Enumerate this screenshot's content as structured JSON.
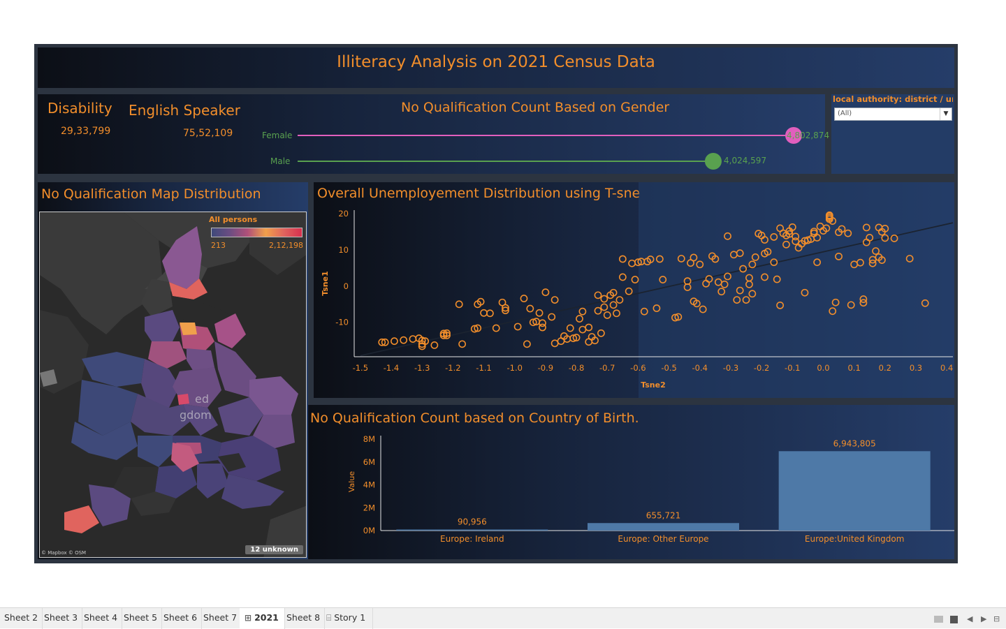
{
  "dashboard": {
    "title": "Illiteracy Analysis on 2021 Census Data"
  },
  "kpis": {
    "disability_label": "Disability",
    "disability_value": "29,33,799",
    "english_label": "English Speaker",
    "english_value": "75,52,109"
  },
  "gender_chart": {
    "title": "No Qualification Count Based on Gender",
    "rows": [
      {
        "label": "Female",
        "value": 4802874,
        "value_text": "4,802,874",
        "color": "#e15fbd"
      },
      {
        "label": "Male",
        "value": 4024597,
        "value_text": "4,024,597",
        "color": "#59a14f"
      }
    ]
  },
  "filter": {
    "title": "local authority: district / unit..",
    "selected": "(All)"
  },
  "map": {
    "title": "No Qualification Map Distribution",
    "legend_title": "All persons",
    "legend_min": "213",
    "legend_max": "2,12,198",
    "attribution": "© Mapbox © OSM",
    "unknown_badge": "12 unknown",
    "country_label_line1": "ed",
    "country_label_line2": "gdom",
    "colors": [
      "#3f4a7a",
      "#6b4d82",
      "#b05079",
      "#e0645e",
      "#f0a04b"
    ]
  },
  "chart_data": [
    {
      "type": "scatter",
      "title": "Overall Unemployement Distribution using T-sne",
      "xlabel": "Tsne2",
      "ylabel": "Tsne1",
      "xlim": [
        -1.52,
        0.42
      ],
      "ylim": [
        -19.5,
        21
      ],
      "x_ticks": [
        -1.5,
        -1.4,
        -1.3,
        -1.2,
        -1.1,
        -1.0,
        -0.9,
        -0.8,
        -0.7,
        -0.6,
        -0.5,
        -0.4,
        -0.3,
        -0.2,
        -0.1,
        0.0,
        0.1,
        0.2,
        0.3,
        0.4
      ],
      "x_tick_labels": [
        "-1.5",
        "-1.4",
        "-1.3",
        "-1.2",
        "-1.1",
        "-1.0",
        "-0.9",
        "-0.8",
        "-0.7",
        "-0.6",
        "-0.5",
        "-0.4",
        "-0.3",
        "-0.2",
        "-0.1",
        "0.0",
        "0.1",
        "0.2",
        "0.3",
        "0.4"
      ],
      "y_ticks": [
        20,
        10,
        0,
        -10
      ],
      "y_tick_labels": [
        "20",
        "10",
        "0",
        "-10"
      ],
      "trend_line": {
        "x": [
          -1.5,
          0.42
        ],
        "y": [
          -19.2,
          17.5
        ]
      },
      "marker_color": "#f28e2b",
      "points": [
        [
          -1.43,
          -15.5
        ],
        [
          -1.42,
          -15.5
        ],
        [
          -1.39,
          -15.2
        ],
        [
          -1.36,
          -14.9
        ],
        [
          -1.33,
          -14.6
        ],
        [
          -1.31,
          -14.4
        ],
        [
          -1.3,
          -15
        ],
        [
          -1.3,
          -16
        ],
        [
          -1.3,
          -16.6
        ],
        [
          -1.29,
          -15.2
        ],
        [
          -1.26,
          -16.3
        ],
        [
          -1.23,
          -13.1
        ],
        [
          -1.22,
          -13
        ],
        [
          -1.23,
          -13.6
        ],
        [
          -1.22,
          -13.6
        ],
        [
          -1.18,
          -5
        ],
        [
          -1.17,
          -16
        ],
        [
          -1.13,
          -11.8
        ],
        [
          -1.12,
          -11.6
        ],
        [
          -1.12,
          -5
        ],
        [
          -1.11,
          -4.3
        ],
        [
          -1.1,
          -7.4
        ],
        [
          -1.08,
          -7.5
        ],
        [
          -1.06,
          -11.6
        ],
        [
          -1.04,
          -4.5
        ],
        [
          -1.03,
          -6
        ],
        [
          -1.03,
          -6.7
        ],
        [
          -0.99,
          -11.2
        ],
        [
          -0.97,
          -3.4
        ],
        [
          -0.96,
          -16
        ],
        [
          -0.95,
          -6.2
        ],
        [
          -0.94,
          -10
        ],
        [
          -0.93,
          -9.8
        ],
        [
          -0.92,
          -7.4
        ],
        [
          -0.91,
          -10.2
        ],
        [
          -0.91,
          -11.4
        ],
        [
          -0.9,
          -1.7
        ],
        [
          -0.88,
          -8.5
        ],
        [
          -0.87,
          -3.8
        ],
        [
          -0.87,
          -15.8
        ],
        [
          -0.85,
          -15.2
        ],
        [
          -0.84,
          -13.8
        ],
        [
          -0.83,
          -14.6
        ],
        [
          -0.82,
          -11.6
        ],
        [
          -0.81,
          -14.4
        ],
        [
          -0.8,
          -14.2
        ],
        [
          -0.79,
          -9
        ],
        [
          -0.78,
          -12
        ],
        [
          -0.78,
          -7
        ],
        [
          -0.76,
          -11.4
        ],
        [
          -0.76,
          -15.4
        ],
        [
          -0.75,
          -14
        ],
        [
          -0.74,
          -15
        ],
        [
          -0.73,
          -6.8
        ],
        [
          -0.73,
          -2.5
        ],
        [
          -0.72,
          -13
        ],
        [
          -0.71,
          -3.5
        ],
        [
          -0.71,
          -5.8
        ],
        [
          -0.7,
          -8
        ],
        [
          -0.69,
          -2.5
        ],
        [
          -0.68,
          -1.8
        ],
        [
          -0.68,
          -5.2
        ],
        [
          -0.67,
          -7.5
        ],
        [
          -0.66,
          -3.8
        ],
        [
          -0.65,
          7.5
        ],
        [
          -0.65,
          2.5
        ],
        [
          -0.63,
          -1.4
        ],
        [
          -0.62,
          6.3
        ],
        [
          -0.61,
          1.8
        ],
        [
          -0.6,
          6.6
        ],
        [
          -0.59,
          6.8
        ],
        [
          -0.58,
          -7
        ],
        [
          -0.57,
          6.8
        ],
        [
          -0.56,
          7.4
        ],
        [
          -0.54,
          -6.1
        ],
        [
          -0.53,
          7.5
        ],
        [
          -0.52,
          1.8
        ],
        [
          -0.48,
          -8.7
        ],
        [
          -0.47,
          -8.5
        ],
        [
          -0.46,
          7.6
        ],
        [
          -0.44,
          -0.3
        ],
        [
          -0.44,
          1.4
        ],
        [
          -0.43,
          6.4
        ],
        [
          -0.42,
          7.9
        ],
        [
          -0.42,
          -4.2
        ],
        [
          -0.41,
          -4.8
        ],
        [
          -0.4,
          6
        ],
        [
          -0.39,
          -6.4
        ],
        [
          -0.38,
          0.7
        ],
        [
          -0.37,
          2
        ],
        [
          -0.36,
          8.3
        ],
        [
          -0.35,
          7.5
        ],
        [
          -0.34,
          1.1
        ],
        [
          -0.33,
          -1.5
        ],
        [
          -0.32,
          0.5
        ],
        [
          -0.31,
          2.7
        ],
        [
          -0.28,
          -3.8
        ],
        [
          -0.27,
          -1.2
        ],
        [
          -0.26,
          4.8
        ],
        [
          -0.25,
          -3.8
        ],
        [
          -0.24,
          2.3
        ],
        [
          -0.24,
          0.5
        ],
        [
          -0.23,
          6
        ],
        [
          -0.22,
          8
        ],
        [
          -0.21,
          14.5
        ],
        [
          -0.2,
          14
        ],
        [
          -0.19,
          12.8
        ],
        [
          -0.19,
          9
        ],
        [
          -0.18,
          9.5
        ],
        [
          -0.16,
          13.6
        ],
        [
          -0.16,
          6.6
        ],
        [
          -0.14,
          16
        ],
        [
          -0.13,
          14.6
        ],
        [
          -0.12,
          14
        ],
        [
          -0.11,
          14.4
        ],
        [
          -0.11,
          15.2
        ],
        [
          -0.1,
          16.3
        ],
        [
          -0.09,
          13.7
        ],
        [
          -0.09,
          12.4
        ],
        [
          -0.07,
          11.7
        ],
        [
          -0.06,
          12.5
        ],
        [
          -0.05,
          12.7
        ],
        [
          -0.04,
          13
        ],
        [
          -0.03,
          14.6
        ],
        [
          -0.03,
          15.1
        ],
        [
          -0.02,
          13.4
        ],
        [
          -0.01,
          16.5
        ],
        [
          0,
          15.3
        ],
        [
          0.01,
          16
        ],
        [
          0.02,
          18.5
        ],
        [
          0.02,
          18.9
        ],
        [
          0.02,
          19.3
        ],
        [
          0.02,
          19.6
        ],
        [
          0.03,
          18
        ],
        [
          0.03,
          -6.9
        ],
        [
          0.04,
          -4.5
        ],
        [
          0.05,
          8.2
        ],
        [
          0.06,
          15.8
        ],
        [
          0.08,
          14.6
        ],
        [
          0.09,
          -5.2
        ],
        [
          0.1,
          6
        ],
        [
          0.12,
          6.5
        ],
        [
          0.13,
          -4.6
        ],
        [
          0.13,
          -3.6
        ],
        [
          0.14,
          12.1
        ],
        [
          0.14,
          16.2
        ],
        [
          0.15,
          13.4
        ],
        [
          0.16,
          7.3
        ],
        [
          0.16,
          6.3
        ],
        [
          0.17,
          9.7
        ],
        [
          0.18,
          16.2
        ],
        [
          0.18,
          8
        ],
        [
          0.19,
          15
        ],
        [
          0.19,
          7.2
        ],
        [
          0.2,
          13.3
        ],
        [
          0.2,
          15.9
        ],
        [
          0.23,
          13.2
        ],
        [
          0.28,
          7.6
        ],
        [
          0.33,
          -4.7
        ],
        [
          -0.06,
          -1.8
        ],
        [
          -0.14,
          -5.3
        ],
        [
          -0.29,
          8.7
        ],
        [
          -0.23,
          -2.1
        ],
        [
          -0.27,
          9.1
        ],
        [
          -0.31,
          13.8
        ],
        [
          -0.15,
          1.9
        ],
        [
          -0.12,
          11.5
        ],
        [
          -0.08,
          10.6
        ],
        [
          -0.02,
          6.6
        ],
        [
          0.05,
          14.9
        ],
        [
          -0.19,
          2.5
        ]
      ]
    },
    {
      "type": "bar",
      "title": "No Qualification Count based on Country of Birth.",
      "ylabel": "Value",
      "categories": [
        "Europe: Ireland",
        "Europe: Other Europe",
        "Europe:United Kingdom"
      ],
      "values": [
        90956,
        655721,
        6943805
      ],
      "value_labels": [
        "90,956",
        "655,721",
        "6,943,805"
      ],
      "ylim": [
        0,
        8000000
      ],
      "y_ticks": [
        0,
        2000000,
        4000000,
        6000000,
        8000000
      ],
      "y_tick_labels": [
        "0M",
        "2M",
        "4M",
        "6M",
        "8M"
      ],
      "bar_color": "#4e79a7"
    }
  ],
  "tabs": [
    {
      "label": "Sheet 2",
      "active": false,
      "icon": ""
    },
    {
      "label": "Sheet 3",
      "active": false,
      "icon": ""
    },
    {
      "label": "Sheet 4",
      "active": false,
      "icon": ""
    },
    {
      "label": "Sheet 5",
      "active": false,
      "icon": ""
    },
    {
      "label": "Sheet 6",
      "active": false,
      "icon": ""
    },
    {
      "label": "Sheet 7",
      "active": false,
      "icon": ""
    },
    {
      "label": "2021",
      "active": true,
      "icon": "dashboard-grid-icon"
    },
    {
      "label": "Sheet 8",
      "active": false,
      "icon": ""
    },
    {
      "label": "Story 1",
      "active": false,
      "icon": "story-book-icon"
    }
  ]
}
